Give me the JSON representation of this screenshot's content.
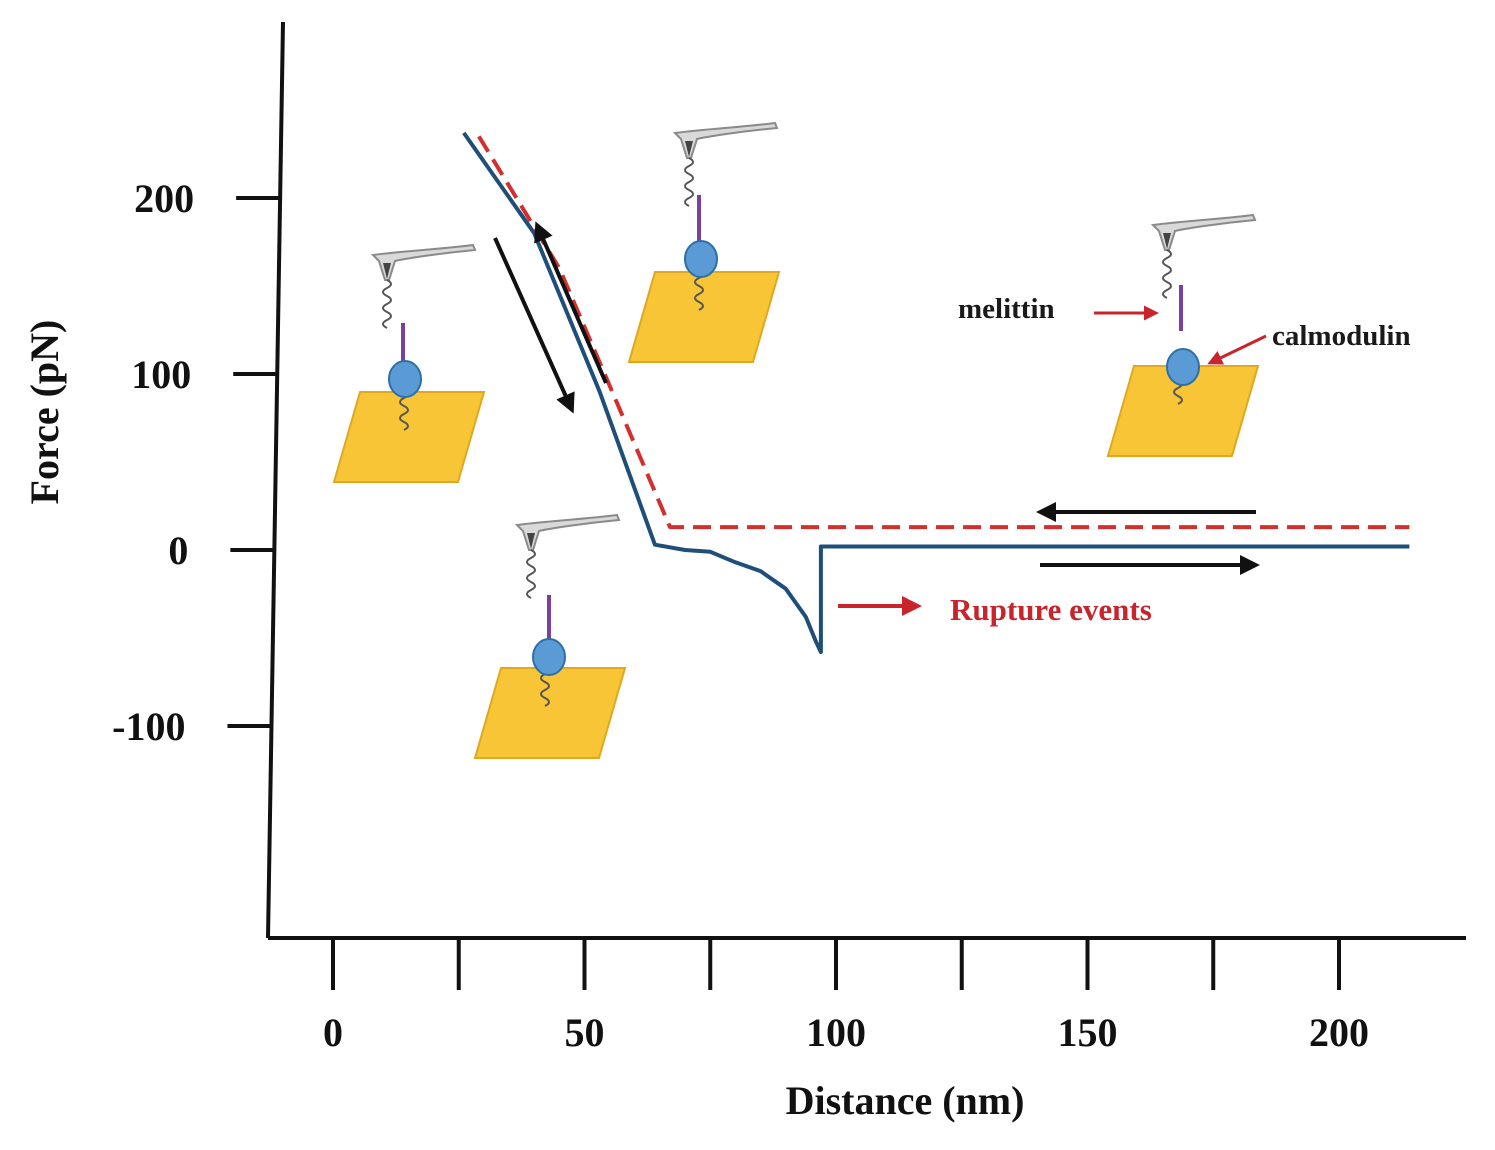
{
  "chart_data": {
    "type": "line",
    "title": "",
    "xlabel": "Distance (nm)",
    "ylabel": "Force (pN)",
    "xlim": [
      -13,
      241
    ],
    "ylim": [
      -220,
      285
    ],
    "xticks": [
      0,
      50,
      100,
      150,
      200
    ],
    "xtick_labels": [
      "0",
      "50",
      "100",
      "150",
      "200"
    ],
    "xminor_ticks": [
      25,
      75,
      125,
      175
    ],
    "yticks": [
      200,
      100,
      0,
      -100
    ],
    "ytick_labels": [
      "200",
      "100",
      "0",
      "-100"
    ],
    "grid": false,
    "legend": "none",
    "series": [
      {
        "color": "#1f4e79",
        "style": "solid",
        "x": [
          26,
          40,
          53,
          64,
          70,
          75,
          80,
          85,
          90,
          94,
          96,
          97,
          97,
          120,
          160,
          200,
          214
        ],
        "y": [
          237,
          180,
          90,
          3,
          0,
          -1,
          -7,
          -12,
          -22,
          -38,
          -52,
          -58,
          2,
          2,
          2,
          2,
          2
        ]
      },
      {
        "color": "#d32f2f",
        "style": "dashed",
        "x": [
          29,
          45,
          57,
          67,
          100,
          150,
          214
        ],
        "y": [
          235,
          160,
          80,
          13,
          13,
          13,
          13
        ]
      }
    ],
    "annotations": {
      "melittin": "melittin",
      "calmodulin": "calmodulin",
      "rupture": "Rupture events"
    },
    "colors": {
      "approach_curve": "#1f4e79",
      "retract_curve": "#d32f2f",
      "arrow_dark": "#111111",
      "arrow_red": "#c8242b",
      "substrate": "#f7c535",
      "protein": "#5b9bd5",
      "linker": "#7b3f9e"
    }
  }
}
